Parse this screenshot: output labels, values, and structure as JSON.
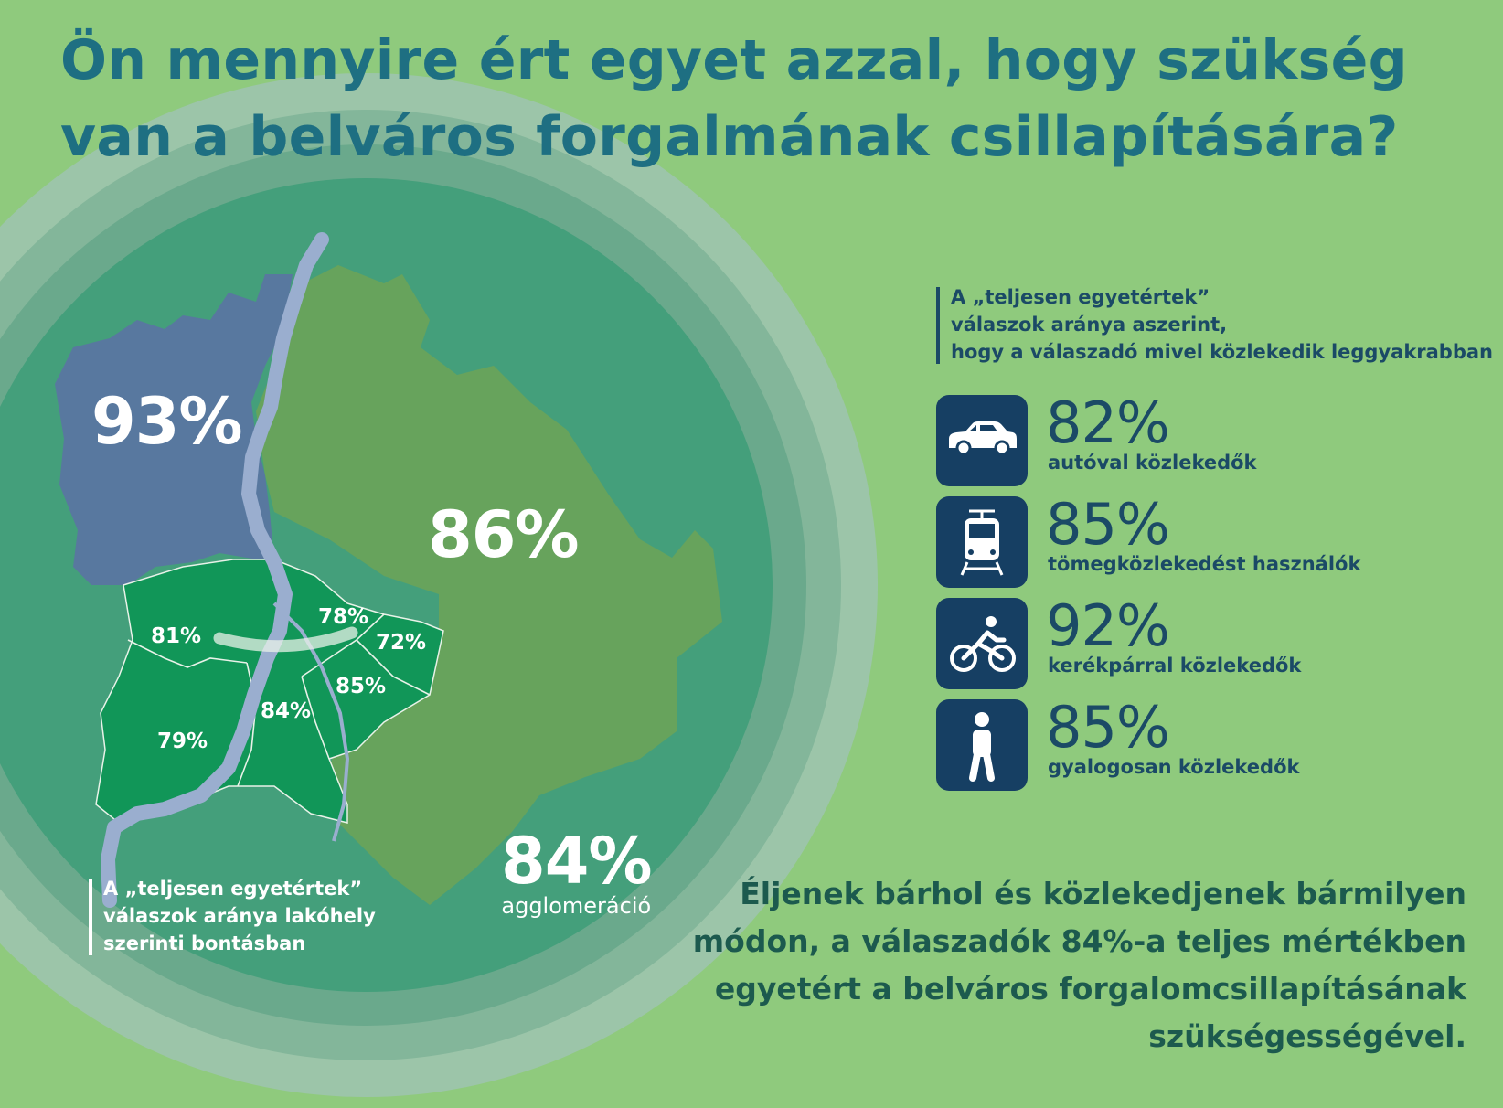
{
  "title": {
    "line1": "Ön mennyire ért egyet azzal, hogy szükség",
    "line2": "van a belváros forgalmának csillapítására?"
  },
  "map_legend": {
    "line1": "A „teljesen egyetértek”",
    "line2": "válaszok aránya lakóhely",
    "line3": "szerinti bontásban"
  },
  "transport_legend": {
    "line1": "A „teljesen egyetértek”",
    "line2": "válaszok aránya aszerint,",
    "line3": "hogy a válaszadó mivel közlekedik leggyakrabban"
  },
  "chart_data": [
    {
      "type": "map",
      "regions": [
        {
          "id": "buda-north",
          "value": 93,
          "label": "93%"
        },
        {
          "id": "pest-outer",
          "value": 86,
          "label": "86%"
        },
        {
          "id": "buda-center",
          "value": 81,
          "label": "81%"
        },
        {
          "id": "pest-inner",
          "value": 78,
          "label": "78%"
        },
        {
          "id": "pest-middle",
          "value": 72,
          "label": "72%"
        },
        {
          "id": "pest-south-inner",
          "value": 85,
          "label": "85%"
        },
        {
          "id": "csepel-north",
          "value": 84,
          "label": "84%"
        },
        {
          "id": "buda-south",
          "value": 79,
          "label": "79%"
        },
        {
          "id": "agglomeracio",
          "value": 84,
          "label": "84%",
          "name": "agglomeráció"
        }
      ]
    },
    {
      "type": "table",
      "rows": [
        {
          "icon": "car-icon",
          "value": 82,
          "label": "82%",
          "text": "autóval közlekedők"
        },
        {
          "icon": "tram-icon",
          "value": 85,
          "label": "85%",
          "text": "tömegközlekedést használók"
        },
        {
          "icon": "bicycle-icon",
          "value": 92,
          "label": "92%",
          "text": "kerékpárral közlekedők"
        },
        {
          "icon": "pedestrian-icon",
          "value": 85,
          "label": "85%",
          "text": "gyalogosan közlekedők"
        }
      ]
    }
  ],
  "closing": {
    "line1": "Éljenek bárhol és közlekedjenek bármilyen",
    "line2": "módon, a válaszadók 84%-a teljes mértékben",
    "line3": "egyetért a belváros forgalomcsillapításának",
    "line4": "szükségességével."
  },
  "colors": {
    "background": "#8fca7d",
    "outer_ring": "#9cc5a9",
    "middle_ring": "#83b69a",
    "inner_ring": "#6aa98c",
    "agglomeration": "#449f7b",
    "buda_north": "#58789f",
    "pest_outer": "#67a35c",
    "inner_districts": "#119658",
    "river": "#9aaecf",
    "title": "#1e6f82",
    "tile": "#163f63",
    "text_dark": "#1b4a66",
    "closing": "#1c5a4e"
  }
}
